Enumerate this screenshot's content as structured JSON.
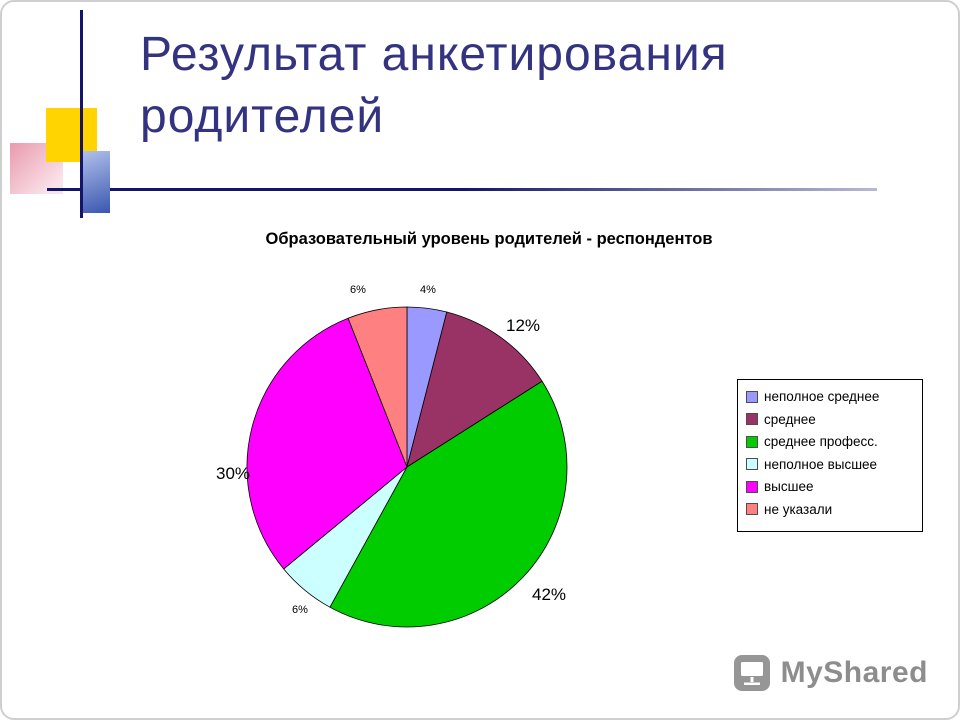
{
  "slide": {
    "title": "Результат анкетирования родителей",
    "title_color": "#333380"
  },
  "chart_data": {
    "type": "pie",
    "title": "Образовательный уровень родителей - респондентов",
    "categories": [
      "неполное среднее",
      "среднее",
      "среднее професс.",
      "неполное высшее",
      "высшее",
      "не указали"
    ],
    "values": [
      4,
      12,
      42,
      6,
      30,
      6
    ],
    "unit": "%",
    "labels": [
      "4%",
      "12%",
      "42%",
      "6%",
      "30%",
      "6%"
    ],
    "colors": [
      "#9999ff",
      "#993366",
      "#00cc00",
      "#ccffff",
      "#ff00ff",
      "#ff8080"
    ],
    "legend_position": "right",
    "start_angle_deg": 0,
    "direction": "clockwise"
  },
  "watermark": {
    "text": "MyShared"
  }
}
